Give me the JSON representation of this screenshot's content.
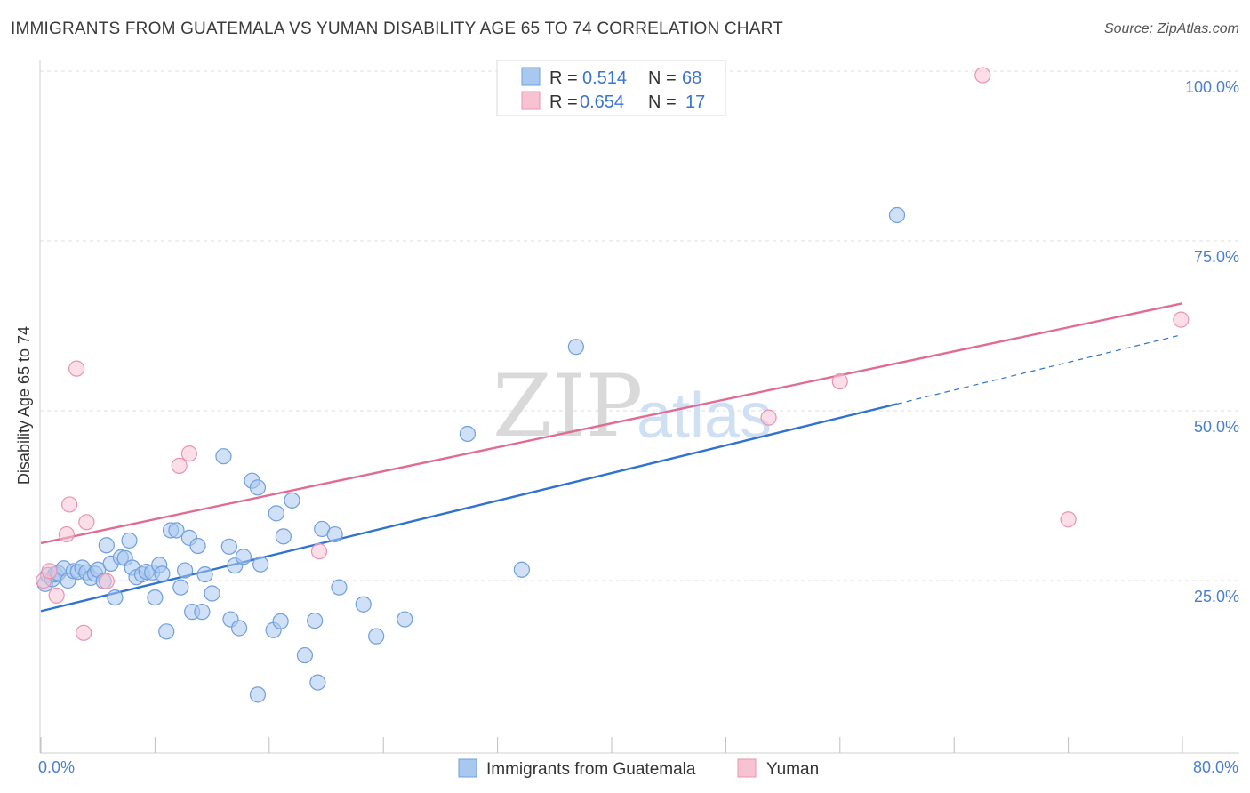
{
  "title": "IMMIGRANTS FROM GUATEMALA VS YUMAN DISABILITY AGE 65 TO 74 CORRELATION CHART",
  "source": "Source: ZipAtlas.com",
  "watermark": {
    "zip": "ZIP",
    "atlas": "atlas"
  },
  "colors": {
    "blue_fill": "#a9c8f0",
    "blue_stroke": "#6f9fdc",
    "blue_line": "#2f72d0",
    "pink_fill": "#f7c3d3",
    "pink_stroke": "#ea93b0",
    "pink_line": "#e06c94",
    "tick_text": "#4a7fd0",
    "grid": "#dcdcdc"
  },
  "legend": {
    "rows": [
      {
        "r_label": "R =",
        "r_value": "0.514",
        "n_label": "N =",
        "n_value": "68",
        "color": "blue"
      },
      {
        "r_label": "R =",
        "r_value": "0.654",
        "n_label": "N =",
        "n_value": "17",
        "color": "pink"
      }
    ]
  },
  "bottom_legend": [
    {
      "label": "Immigrants from Guatemala",
      "color": "blue"
    },
    {
      "label": "Yuman",
      "color": "pink"
    }
  ],
  "chart_data": {
    "type": "scatter",
    "title": "IMMIGRANTS FROM GUATEMALA VS YUMAN DISABILITY AGE 65 TO 74 CORRELATION CHART",
    "xlabel": "",
    "ylabel": "Disability Age 65 to 74",
    "xlim": [
      0,
      80
    ],
    "ylim": [
      0,
      100
    ],
    "x_tick_labels": [
      "0.0%",
      "80.0%"
    ],
    "y_ticks": [
      25,
      50,
      75,
      100
    ],
    "y_tick_labels": [
      "25.0%",
      "50.0%",
      "75.0%",
      "100.0%"
    ],
    "grid": true,
    "legend_placement": "top-center",
    "series": [
      {
        "name": "Immigrants from Guatemala",
        "color": "blue",
        "r": 0.514,
        "n": 68,
        "trend": {
          "x0": 0,
          "y0": 20.5,
          "x1": 60,
          "y1": 51.0,
          "dashed_to_x": 80,
          "dashed_to_y": 61.2
        },
        "points": [
          [
            0.3,
            24.5
          ],
          [
            0.5,
            25.8
          ],
          [
            0.8,
            25.2
          ],
          [
            1.0,
            25.9
          ],
          [
            1.2,
            26.1
          ],
          [
            1.6,
            26.8
          ],
          [
            1.9,
            25.0
          ],
          [
            2.3,
            26.4
          ],
          [
            2.6,
            26.3
          ],
          [
            2.9,
            26.9
          ],
          [
            3.2,
            26.2
          ],
          [
            3.5,
            25.4
          ],
          [
            3.8,
            26.0
          ],
          [
            4.0,
            26.6
          ],
          [
            4.4,
            24.9
          ],
          [
            4.6,
            30.2
          ],
          [
            4.9,
            27.5
          ],
          [
            5.2,
            22.5
          ],
          [
            5.6,
            28.4
          ],
          [
            5.9,
            28.3
          ],
          [
            6.2,
            30.9
          ],
          [
            6.4,
            26.9
          ],
          [
            6.7,
            25.5
          ],
          [
            7.1,
            25.9
          ],
          [
            7.4,
            26.3
          ],
          [
            7.8,
            26.2
          ],
          [
            8.0,
            22.5
          ],
          [
            8.3,
            27.3
          ],
          [
            8.5,
            26.0
          ],
          [
            8.8,
            17.5
          ],
          [
            9.1,
            32.4
          ],
          [
            9.5,
            32.4
          ],
          [
            9.8,
            24.0
          ],
          [
            10.1,
            26.5
          ],
          [
            10.4,
            31.3
          ],
          [
            10.6,
            20.4
          ],
          [
            11.0,
            30.1
          ],
          [
            11.3,
            20.4
          ],
          [
            11.5,
            25.9
          ],
          [
            12.0,
            23.1
          ],
          [
            12.8,
            43.3
          ],
          [
            13.2,
            30.0
          ],
          [
            13.3,
            19.3
          ],
          [
            13.6,
            27.2
          ],
          [
            13.9,
            18.0
          ],
          [
            14.2,
            28.5
          ],
          [
            14.8,
            39.7
          ],
          [
            15.2,
            38.7
          ],
          [
            15.4,
            27.4
          ],
          [
            16.3,
            17.7
          ],
          [
            16.5,
            34.9
          ],
          [
            16.8,
            19.0
          ],
          [
            17.0,
            31.5
          ],
          [
            17.6,
            36.8
          ],
          [
            18.5,
            14.0
          ],
          [
            19.2,
            19.1
          ],
          [
            19.4,
            10.0
          ],
          [
            19.7,
            32.6
          ],
          [
            20.6,
            31.8
          ],
          [
            20.9,
            24.0
          ],
          [
            22.6,
            21.5
          ],
          [
            23.5,
            16.8
          ],
          [
            25.5,
            19.3
          ],
          [
            29.9,
            46.6
          ],
          [
            33.7,
            26.6
          ],
          [
            37.5,
            59.4
          ],
          [
            60.0,
            78.8
          ],
          [
            15.2,
            8.2
          ]
        ]
      },
      {
        "name": "Yuman",
        "color": "pink",
        "r": 0.654,
        "n": 17,
        "trend": {
          "x0": 0,
          "y0": 30.5,
          "x1": 80,
          "y1": 65.8
        },
        "points": [
          [
            0.2,
            25.0
          ],
          [
            0.6,
            26.4
          ],
          [
            1.1,
            22.8
          ],
          [
            1.8,
            31.8
          ],
          [
            2.0,
            36.2
          ],
          [
            2.5,
            56.2
          ],
          [
            3.0,
            17.3
          ],
          [
            3.2,
            33.6
          ],
          [
            4.6,
            24.9
          ],
          [
            9.7,
            41.9
          ],
          [
            10.4,
            43.7
          ],
          [
            19.5,
            29.3
          ],
          [
            51.0,
            49.0
          ],
          [
            56.0,
            54.3
          ],
          [
            66.0,
            99.4
          ],
          [
            72.0,
            34.0
          ],
          [
            79.9,
            63.4
          ]
        ]
      }
    ]
  }
}
